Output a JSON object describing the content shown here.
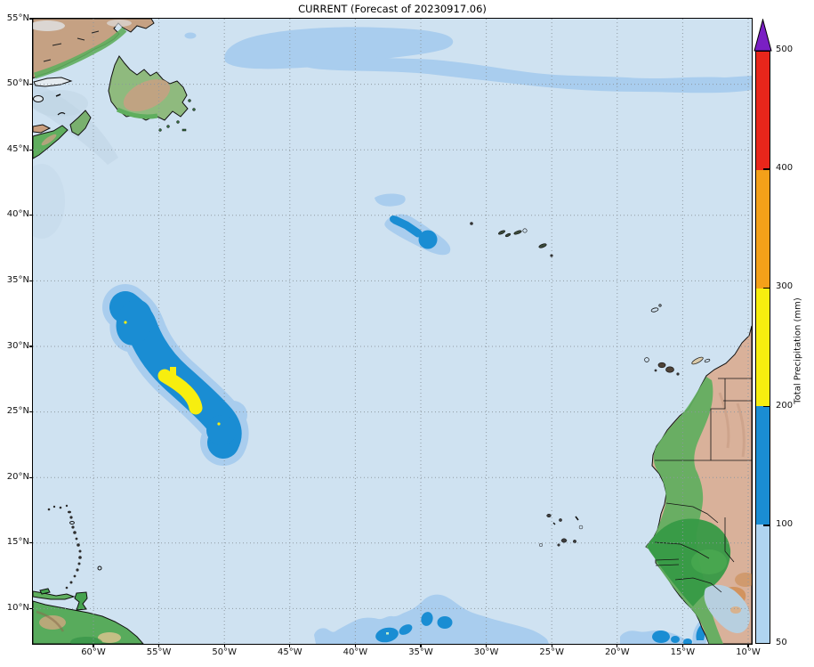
{
  "title": "CURRENT (Forecast of 20230917.06)",
  "axes": {
    "lat_ticks": [
      {
        "label": "55°N",
        "deg": 55
      },
      {
        "label": "50°N",
        "deg": 50
      },
      {
        "label": "45°N",
        "deg": 45
      },
      {
        "label": "40°N",
        "deg": 40
      },
      {
        "label": "35°N",
        "deg": 35
      },
      {
        "label": "30°N",
        "deg": 30
      },
      {
        "label": "25°N",
        "deg": 25
      },
      {
        "label": "20°N",
        "deg": 20
      },
      {
        "label": "15°N",
        "deg": 15
      },
      {
        "label": "10°N",
        "deg": 10
      }
    ],
    "lon_ticks": [
      {
        "label": "60°W",
        "deg": 60
      },
      {
        "label": "55°W",
        "deg": 55
      },
      {
        "label": "50°W",
        "deg": 50
      },
      {
        "label": "45°W",
        "deg": 45
      },
      {
        "label": "40°W",
        "deg": 40
      },
      {
        "label": "35°W",
        "deg": 35
      },
      {
        "label": "30°W",
        "deg": 30
      },
      {
        "label": "25°W",
        "deg": 25
      },
      {
        "label": "20°W",
        "deg": 20
      },
      {
        "label": "15°W",
        "deg": 15
      },
      {
        "label": "10°W",
        "deg": 10
      }
    ]
  },
  "colorbar": {
    "title": "Total Precipitation (mm)",
    "ticks": [
      "50",
      "100",
      "200",
      "300",
      "400",
      "500"
    ],
    "segments": [
      {
        "from": 50,
        "to": 100,
        "color": "#b0d4f0"
      },
      {
        "from": 100,
        "to": 200,
        "color": "#1a8dd3"
      },
      {
        "from": 200,
        "to": 300,
        "color": "#f7ee0f"
      },
      {
        "from": 300,
        "to": 400,
        "color": "#f4a019"
      },
      {
        "from": 400,
        "to": 500,
        "color": "#e8261b"
      }
    ],
    "over_color": "#7a1fc4"
  },
  "colors": {
    "ocean": "#cfe2f1",
    "p50": "#a9cdee",
    "p100": "#1a8dd3",
    "p200": "#f7ee0f",
    "p300": "#f4a019",
    "p400": "#e8261b",
    "pover": "#7a1fc4",
    "land_tan": "#c5a183",
    "sahara": "#d9b19a",
    "land_green": "#5fae5e",
    "land_dgreen": "#379a46",
    "grid": "#8c979e",
    "coast": "#101010"
  },
  "precipitation_features": [
    {
      "name": "storm swath",
      "approx_location": "24–33°N, 49–57°W",
      "peak_level": "200–300 mm"
    },
    {
      "name": "azores-area system",
      "approx_location": "37.5–40°N, 32–36°W",
      "peak_level": "100–200 mm"
    },
    {
      "name": "north atlantic streaks",
      "approx_location": "52–54°N, 10–50°W",
      "peak_level": "50–100 mm"
    },
    {
      "name": "itcz band",
      "approx_location": "7–10°N, 13–42°W",
      "peak_level": "100–200 mm"
    }
  ]
}
